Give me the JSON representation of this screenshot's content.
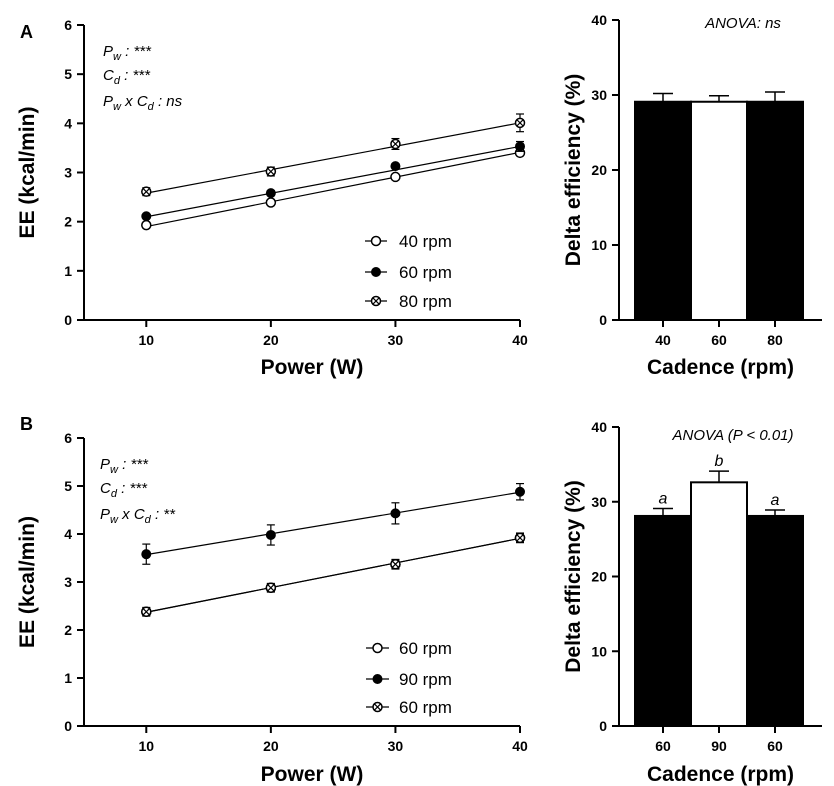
{
  "chart_data": [
    {
      "id": "A-left",
      "panel_label": "A",
      "type": "line",
      "xlabel": "Power (W)",
      "ylabel": "EE (kcal/min)",
      "xlim": [
        5,
        40
      ],
      "ylim": [
        0,
        6
      ],
      "xticks": [
        10,
        20,
        30,
        40
      ],
      "yticks": [
        0,
        1,
        2,
        3,
        4,
        5,
        6
      ],
      "annotations": [
        {
          "var": "P",
          "sub": "w",
          "suffix": " : ***"
        },
        {
          "var": "C",
          "sub": "d",
          "suffix": " : ***"
        },
        {
          "interaction": true,
          "var1": "P",
          "sub1": "w",
          "mid": " x ",
          "var2": "C",
          "sub2": "d",
          "suffix": " : ns"
        }
      ],
      "legend_position": "bottom-right",
      "series": [
        {
          "name": "40 rpm",
          "marker": "open-circle",
          "x": [
            10,
            20,
            30,
            40
          ],
          "y": [
            1.93,
            2.39,
            2.91,
            3.4
          ],
          "err": [
            0.04,
            0.05,
            0.05,
            0.06
          ],
          "fit": [
            1.9,
            3.41
          ]
        },
        {
          "name": "60 rpm",
          "marker": "filled-circle",
          "x": [
            10,
            20,
            30,
            40
          ],
          "y": [
            2.11,
            2.58,
            3.13,
            3.53
          ],
          "err": [
            0.04,
            0.05,
            0.05,
            0.1
          ],
          "fit": [
            2.1,
            3.53
          ]
        },
        {
          "name": "80 rpm",
          "marker": "circle-x",
          "x": [
            10,
            20,
            30,
            40
          ],
          "y": [
            2.61,
            3.02,
            3.58,
            4.01
          ],
          "err": [
            0.08,
            0.09,
            0.11,
            0.18
          ],
          "fit": [
            2.58,
            4.01
          ]
        }
      ]
    },
    {
      "id": "A-right",
      "type": "bar",
      "xlabel": "Cadence (rpm)",
      "ylabel": "Delta efficiency (%)",
      "ylim": [
        0,
        40
      ],
      "yticks": [
        0,
        10,
        20,
        30,
        40
      ],
      "annotation": "ANOVA: ns",
      "categories": [
        "40",
        "60",
        "80"
      ],
      "values": [
        29.1,
        29.1,
        29.1
      ],
      "err": [
        1.1,
        0.8,
        1.3
      ],
      "fills": [
        "#000000",
        "#ffffff",
        "#000000"
      ],
      "bar_labels": [
        "",
        "",
        ""
      ]
    },
    {
      "id": "B-left",
      "panel_label": "B",
      "type": "line",
      "xlabel": "Power (W)",
      "ylabel": "EE (kcal/min)",
      "xlim": [
        5,
        40
      ],
      "ylim": [
        0,
        6
      ],
      "xticks": [
        10,
        20,
        30,
        40
      ],
      "yticks": [
        0,
        1,
        2,
        3,
        4,
        5,
        6
      ],
      "annotations": [
        {
          "var": "P",
          "sub": "w",
          "suffix": " : ***"
        },
        {
          "var": "C",
          "sub": "d",
          "suffix": " : ***"
        },
        {
          "interaction": true,
          "var1": "P",
          "sub1": "w",
          "mid": " x ",
          "var2": "C",
          "sub2": "d",
          "suffix": " : **"
        }
      ],
      "legend_position": "bottom-right",
      "series": [
        {
          "name": "60 rpm",
          "marker": "open-circle",
          "x": [
            10,
            20,
            30,
            40
          ],
          "y": [
            2.38,
            2.88,
            3.37,
            3.92
          ],
          "err": [
            0.09,
            0.09,
            0.1,
            0.1
          ],
          "fit": [
            2.37,
            3.91
          ]
        },
        {
          "name": "90 rpm",
          "marker": "filled-circle",
          "x": [
            10,
            20,
            30,
            40
          ],
          "y": [
            3.58,
            3.98,
            4.43,
            4.88
          ],
          "err": [
            0.21,
            0.21,
            0.22,
            0.17
          ],
          "fit": [
            3.57,
            4.87
          ]
        },
        {
          "name": "60 rpm",
          "marker": "circle-x",
          "x": [
            10,
            20,
            30,
            40
          ],
          "y": [
            2.38,
            2.88,
            3.37,
            3.92
          ],
          "err": [
            0.08,
            0.08,
            0.09,
            0.09
          ],
          "fit": [
            2.37,
            3.91
          ]
        }
      ]
    },
    {
      "id": "B-right",
      "type": "bar",
      "xlabel": "Cadence (rpm)",
      "ylabel": "Delta efficiency (%)",
      "ylim": [
        0,
        40
      ],
      "yticks": [
        0,
        10,
        20,
        30,
        40
      ],
      "annotation": "ANOVA (P < 0.01)",
      "categories": [
        "60",
        "90",
        "60"
      ],
      "values": [
        28.1,
        32.6,
        28.1
      ],
      "err": [
        1.0,
        1.5,
        0.8
      ],
      "fills": [
        "#000000",
        "#ffffff",
        "#000000"
      ],
      "bar_labels": [
        "a",
        "b",
        "a"
      ]
    }
  ]
}
